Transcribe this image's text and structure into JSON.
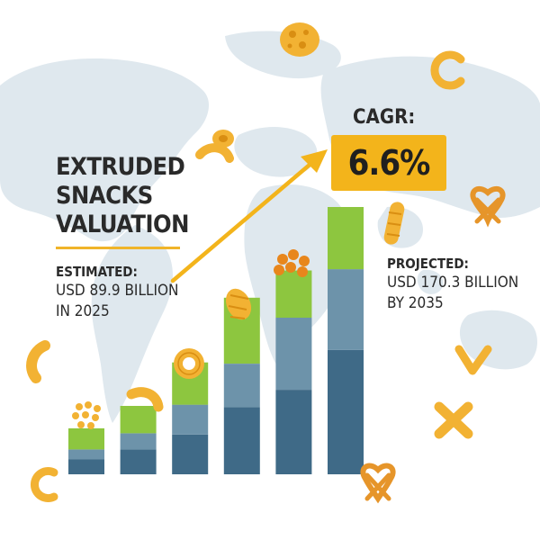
{
  "title_lines": [
    "EXTRUDED",
    "SNACKS",
    "VALUATION"
  ],
  "estimated": {
    "label": "ESTIMATED:",
    "value_line": "USD 89.9 BILLION",
    "year_line": "IN 2025"
  },
  "projected": {
    "label": "PROJECTED:",
    "value_line": "USD 170.3 BILLION",
    "year_line": "BY 2035"
  },
  "cagr": {
    "label": "CAGR:",
    "value": "6.6%"
  },
  "colors": {
    "accent": "#f3b41b",
    "green": "#8dc63f",
    "slate_mid": "#6d93aa",
    "slate_dark": "#3f6a87",
    "map": "#dfe8ee",
    "snack": "#f2b233"
  },
  "icons": [
    "cheese-puff-icon",
    "macaroni-icon",
    "pretzel-icon",
    "corn-puff-icon",
    "wheel-snack-icon",
    "snack-ball-cluster-icon",
    "cross-snack-icon",
    "v-snack-icon"
  ],
  "chart_data": {
    "type": "bar",
    "stacked": true,
    "categories": [
      "",
      "",
      "",
      "",
      "",
      ""
    ],
    "series": [
      {
        "values": [
          12,
          20,
          32,
          54,
          68,
          100
        ]
      },
      {
        "values": [
          8,
          13,
          24,
          35,
          58,
          65
        ]
      },
      {
        "values": [
          17,
          22,
          34,
          53,
          38,
          50
        ]
      }
    ],
    "series_colors": [
      "#3f6a87",
      "#6d93aa",
      "#8dc63f"
    ],
    "title": "",
    "xlabel": "",
    "ylabel": "",
    "ylim": [
      0,
      215
    ],
    "grid": false,
    "legend": "none"
  }
}
